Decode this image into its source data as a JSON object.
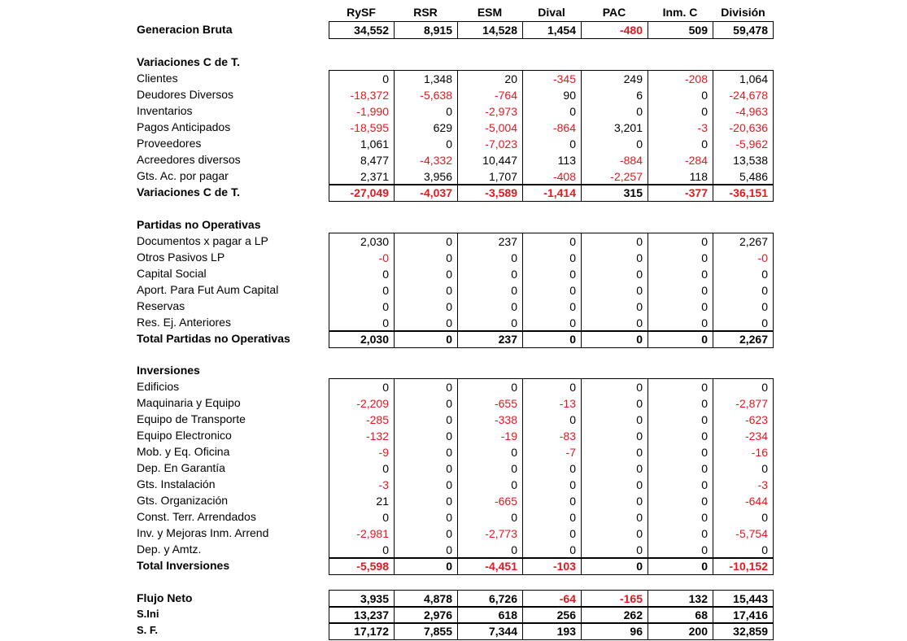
{
  "columns": [
    "RySF",
    "RSR",
    "ESM",
    "Dival",
    "PAC",
    "Inm. C",
    "División"
  ],
  "sections": [
    {
      "title": "",
      "rows": [],
      "total": {
        "label": "Generacion Bruta",
        "values": [
          "34,552",
          "8,915",
          "14,528",
          "1,454",
          "-480",
          "509",
          "59,478"
        ]
      }
    },
    {
      "title": "Variaciones C de T.",
      "rows": [
        {
          "label": "Clientes",
          "values": [
            "0",
            "1,348",
            "20",
            "-345",
            "249",
            "-208",
            "1,064"
          ]
        },
        {
          "label": "Deudores Diversos",
          "values": [
            "-18,372",
            "-5,638",
            "-764",
            "90",
            "6",
            "0",
            "-24,678"
          ]
        },
        {
          "label": "Inventarios",
          "values": [
            "-1,990",
            "0",
            "-2,973",
            "0",
            "0",
            "0",
            "-4,963"
          ]
        },
        {
          "label": "Pagos Anticipados",
          "values": [
            "-18,595",
            "629",
            "-5,004",
            "-864",
            "3,201",
            "-3",
            "-20,636"
          ]
        },
        {
          "label": "Proveedores",
          "values": [
            "1,061",
            "0",
            "-7,023",
            "0",
            "0",
            "0",
            "-5,962"
          ]
        },
        {
          "label": "Acreedores diversos",
          "values": [
            "8,477",
            "-4,332",
            "10,447",
            "113",
            "-884",
            "-284",
            "13,538"
          ]
        },
        {
          "label": "Gts. Ac. por pagar",
          "values": [
            "2,371",
            "3,956",
            "1,707",
            "-408",
            "-2,257",
            "118",
            "5,486"
          ]
        }
      ],
      "total": {
        "label": "Variaciones C de T.",
        "values": [
          "-27,049",
          "-4,037",
          "-3,589",
          "-1,414",
          "315",
          "-377",
          "-36,151"
        ]
      }
    },
    {
      "title": "Partidas no Operativas",
      "rows": [
        {
          "label": "Documentos x pagar a LP",
          "values": [
            "2,030",
            "0",
            "237",
            "0",
            "0",
            "0",
            "2,267"
          ]
        },
        {
          "label": "Otros Pasivos LP",
          "values": [
            "-0",
            "0",
            "0",
            "0",
            "0",
            "0",
            "-0"
          ]
        },
        {
          "label": "Capital Social",
          "values": [
            "0",
            "0",
            "0",
            "0",
            "0",
            "0",
            "0"
          ]
        },
        {
          "label": "Aport. Para Fut Aum Capital",
          "values": [
            "0",
            "0",
            "0",
            "0",
            "0",
            "0",
            "0"
          ]
        },
        {
          "label": "Reservas",
          "values": [
            "0",
            "0",
            "0",
            "0",
            "0",
            "0",
            "0"
          ]
        },
        {
          "label": "Res. Ej. Anteriores",
          "values": [
            "0",
            "0",
            "0",
            "0",
            "0",
            "0",
            "0"
          ]
        }
      ],
      "total": {
        "label": "Total Partidas no Operativas",
        "values": [
          "2,030",
          "0",
          "237",
          "0",
          "0",
          "0",
          "2,267"
        ]
      }
    },
    {
      "title": "Inversiones",
      "rows": [
        {
          "label": "Edificios",
          "values": [
            "0",
            "0",
            "0",
            "0",
            "0",
            "0",
            "0"
          ]
        },
        {
          "label": "Maquinaria y Equipo",
          "values": [
            "-2,209",
            "0",
            "-655",
            "-13",
            "0",
            "0",
            "-2,877"
          ]
        },
        {
          "label": "Equipo de Transporte",
          "values": [
            "-285",
            "0",
            "-338",
            "0",
            "0",
            "0",
            "-623"
          ]
        },
        {
          "label": "Equipo Electronico",
          "values": [
            "-132",
            "0",
            "-19",
            "-83",
            "0",
            "0",
            "-234"
          ]
        },
        {
          "label": "Mob. y Eq. Oficina",
          "values": [
            "-9",
            "0",
            "0",
            "-7",
            "0",
            "0",
            "-16"
          ]
        },
        {
          "label": "Dep. En Garantía",
          "values": [
            "0",
            "0",
            "0",
            "0",
            "0",
            "0",
            "0"
          ]
        },
        {
          "label": "Gts. Instalación",
          "values": [
            "-3",
            "0",
            "0",
            "0",
            "0",
            "0",
            "-3"
          ]
        },
        {
          "label": "Gts. Organización",
          "values": [
            "21",
            "0",
            "-665",
            "0",
            "0",
            "0",
            "-644"
          ]
        },
        {
          "label": "Const. Terr. Arrendados",
          "values": [
            "0",
            "0",
            "0",
            "0",
            "0",
            "0",
            "0"
          ]
        },
        {
          "label": "Inv. y Mejoras Inm. Arrend",
          "values": [
            "-2,981",
            "0",
            "-2,773",
            "0",
            "0",
            "0",
            "-5,754"
          ]
        },
        {
          "label": "Dep. y Amtz.",
          "values": [
            "0",
            "0",
            "0",
            "0",
            "0",
            "0",
            "0"
          ]
        }
      ],
      "total": {
        "label": "Total Inversiones",
        "values": [
          "-5,598",
          "0",
          "-4,451",
          "-103",
          "0",
          "0",
          "-10,152"
        ]
      }
    }
  ],
  "summary": [
    {
      "label": "Flujo Neto",
      "values": [
        "3,935",
        "4,878",
        "6,726",
        "-64",
        "-165",
        "132",
        "15,443"
      ]
    },
    {
      "label": "S.Ini",
      "values": [
        "13,237",
        "2,976",
        "618",
        "256",
        "262",
        "68",
        "17,416"
      ]
    },
    {
      "label": "S. F.",
      "values": [
        "17,172",
        "7,855",
        "7,344",
        "193",
        "96",
        "200",
        "32,859"
      ]
    }
  ]
}
